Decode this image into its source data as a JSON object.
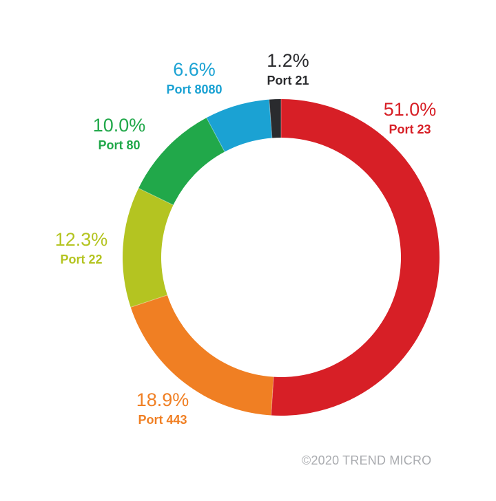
{
  "chart_data": {
    "type": "pie",
    "series": [
      {
        "label": "Port 23",
        "value": 51.0,
        "value_text": "51.0%",
        "color": "#d71f26"
      },
      {
        "label": "Port 443",
        "value": 18.9,
        "value_text": "18.9%",
        "color": "#f07f23"
      },
      {
        "label": "Port 22",
        "value": 12.3,
        "value_text": "12.3%",
        "color": "#b4c421"
      },
      {
        "label": "Port 80",
        "value": 10.0,
        "value_text": "10.0%",
        "color": "#21a84a"
      },
      {
        "label": "Port 8080",
        "value": 6.6,
        "value_text": "6.6%",
        "color": "#1ba2d3"
      },
      {
        "label": "Port 21",
        "value": 1.2,
        "value_text": "1.2%",
        "color": "#2a2b2e"
      }
    ]
  },
  "footer": {
    "copyright": "©2020 TREND MICRO"
  }
}
